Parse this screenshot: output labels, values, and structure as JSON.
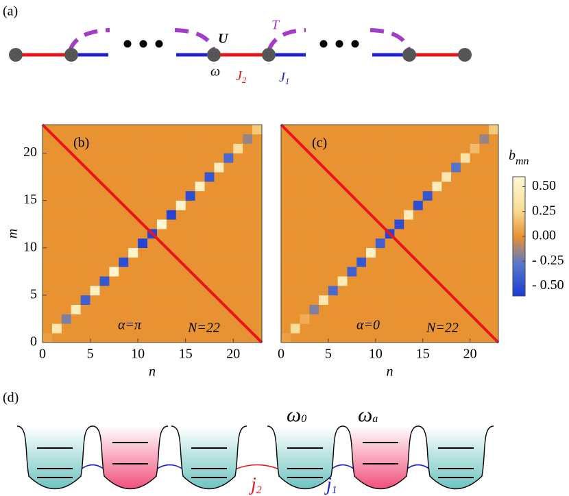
{
  "panel_a": {
    "label": "(a)",
    "U": "U",
    "T": "T",
    "omega": "ω",
    "J2": {
      "base": "J",
      "sub": "2"
    },
    "J1": {
      "base": "J",
      "sub": "1"
    }
  },
  "chart_data": [
    {
      "type": "heatmap",
      "label": "(b)",
      "annotation": "α=π",
      "size_label": "N=22",
      "xlabel": "n",
      "ylabel": "m",
      "xlim": [
        0,
        23
      ],
      "ylim": [
        0,
        23
      ],
      "xticks": [
        0,
        5,
        10,
        15,
        20
      ],
      "yticks": [
        0,
        5,
        10,
        15,
        20
      ],
      "z": [
        [
          0.05,
          0,
          0,
          0,
          0,
          0,
          0,
          0,
          0,
          0,
          0,
          0,
          0,
          0,
          0,
          0,
          0,
          0,
          0,
          0,
          0,
          0,
          0
        ],
        [
          0,
          0.4,
          0,
          0,
          0,
          0,
          0,
          0,
          0,
          0,
          0,
          0,
          0,
          0,
          0,
          0,
          0,
          0,
          0,
          0,
          0,
          0,
          0
        ],
        [
          0,
          0,
          -0.2,
          0,
          0,
          0,
          0,
          0,
          0,
          0,
          0,
          0,
          0,
          0,
          0,
          0,
          0,
          0,
          0,
          0,
          0,
          0,
          0
        ],
        [
          0,
          0,
          0,
          0.45,
          0,
          0,
          0,
          0,
          0,
          0,
          0,
          0,
          0,
          0,
          0,
          0,
          0,
          0,
          0,
          0,
          0,
          0,
          0
        ],
        [
          0,
          0,
          0,
          0,
          -0.4,
          0,
          0,
          0,
          0,
          0,
          0,
          0,
          0,
          0,
          0,
          0,
          0,
          0,
          0,
          0,
          0,
          0,
          0
        ],
        [
          0,
          0,
          0,
          0,
          0,
          0.5,
          0,
          0,
          0,
          0,
          0,
          0,
          0,
          0,
          0,
          0,
          0,
          0,
          0,
          0,
          0,
          0,
          0
        ],
        [
          0,
          0,
          0,
          0,
          0,
          0,
          -0.45,
          0,
          0,
          0,
          0,
          0,
          0,
          0,
          0,
          0,
          0,
          0,
          0,
          0,
          0,
          0,
          0
        ],
        [
          0,
          0,
          0,
          0,
          0,
          0,
          0,
          0.55,
          0,
          0,
          0,
          0,
          0,
          0,
          0,
          0,
          0,
          0,
          0,
          0,
          0,
          0,
          0
        ],
        [
          0,
          0,
          0,
          0,
          0,
          0,
          0,
          0,
          -0.5,
          0,
          0,
          0,
          0,
          0,
          0,
          0,
          0,
          0,
          0,
          0,
          0,
          0,
          0
        ],
        [
          0,
          0,
          0,
          0,
          0,
          0,
          0,
          0,
          0,
          0.55,
          0,
          0,
          0,
          0,
          0,
          0,
          0,
          0,
          0,
          0,
          0,
          0,
          0
        ],
        [
          0,
          0,
          0,
          0,
          0,
          0,
          0,
          0,
          0,
          0,
          -0.55,
          0,
          0,
          0,
          0,
          0,
          0,
          0,
          0,
          0,
          0,
          0,
          0
        ],
        [
          0,
          0,
          0,
          0,
          0,
          0,
          0,
          0,
          0,
          0,
          0,
          -0.55,
          0,
          0,
          0,
          0,
          0,
          0,
          0,
          0,
          0,
          0,
          0
        ],
        [
          0,
          0,
          0,
          0,
          0,
          0,
          0,
          0,
          0,
          0,
          0,
          0,
          0.6,
          0,
          0,
          0,
          0,
          0,
          0,
          0,
          0,
          0,
          0
        ],
        [
          0,
          0,
          0,
          0,
          0,
          0,
          0,
          0,
          0,
          0,
          0,
          0,
          0,
          -0.55,
          0,
          0,
          0,
          0,
          0,
          0,
          0,
          0,
          0
        ],
        [
          0,
          0,
          0,
          0,
          0,
          0,
          0,
          0,
          0,
          0,
          0,
          0,
          0,
          0,
          0.55,
          0,
          0,
          0,
          0,
          0,
          0,
          0,
          0
        ],
        [
          0,
          0,
          0,
          0,
          0,
          0,
          0,
          0,
          0,
          0,
          0,
          0,
          0,
          0,
          0,
          -0.5,
          0,
          0,
          0,
          0,
          0,
          0,
          0
        ],
        [
          0,
          0,
          0,
          0,
          0,
          0,
          0,
          0,
          0,
          0,
          0,
          0,
          0,
          0,
          0,
          0,
          0.5,
          0,
          0,
          0,
          0,
          0,
          0
        ],
        [
          0,
          0,
          0,
          0,
          0,
          0,
          0,
          0,
          0,
          0,
          0,
          0,
          0,
          0,
          0,
          0,
          0,
          -0.45,
          0,
          0,
          0,
          0,
          0
        ],
        [
          0,
          0,
          0,
          0,
          0,
          0,
          0,
          0,
          0,
          0,
          0,
          0,
          0,
          0,
          0,
          0,
          0,
          0,
          0.45,
          0,
          0,
          0,
          0
        ],
        [
          0,
          0,
          0,
          0,
          0,
          0,
          0,
          0,
          0,
          0,
          0,
          0,
          0,
          0,
          0,
          0,
          0,
          0,
          0,
          -0.35,
          0,
          0,
          0
        ],
        [
          0,
          0,
          0,
          0,
          0,
          0,
          0,
          0,
          0,
          0,
          0,
          0,
          0,
          0,
          0,
          0,
          0,
          0,
          0,
          0,
          0.3,
          0,
          0
        ],
        [
          0,
          0,
          0,
          0,
          0,
          0,
          0,
          0,
          0,
          0,
          0,
          0,
          0,
          0,
          0,
          0,
          0,
          0,
          0,
          0,
          0,
          -0.15,
          0
        ],
        [
          0,
          0,
          0,
          0,
          0,
          0,
          0,
          0,
          0,
          0,
          0,
          0,
          0,
          0,
          0,
          0,
          0,
          0,
          0,
          0,
          0,
          0,
          0.2
        ]
      ]
    },
    {
      "type": "heatmap",
      "label": "(c)",
      "annotation": "α=0",
      "size_label": "N=22",
      "xlabel": "n",
      "xlim": [
        0,
        23
      ],
      "ylim": [
        0,
        23
      ],
      "xticks": [
        0,
        5,
        10,
        15,
        20
      ],
      "clim": [
        -0.6,
        0.6
      ],
      "cticks": [
        {
          "value": 0.5,
          "label": "0.50"
        },
        {
          "value": 0.25,
          "label": "0.25"
        },
        {
          "value": 0,
          "label": "0.00"
        },
        {
          "value": -0.25,
          "label": "- 0.25"
        },
        {
          "value": -0.5,
          "label": "- 0.50"
        }
      ],
      "colorbar_label": {
        "base": "b",
        "sub": "mn"
      },
      "z": [
        [
          0.05,
          0,
          0,
          0,
          0,
          0,
          0,
          0,
          0,
          0,
          0,
          0,
          0,
          0,
          0,
          0,
          0,
          0,
          0,
          0,
          0,
          0,
          0
        ],
        [
          0,
          0.3,
          0,
          0,
          0,
          0,
          0,
          0,
          0,
          0,
          0,
          0,
          0,
          0,
          0,
          0,
          0,
          0,
          0,
          0,
          0,
          0,
          0
        ],
        [
          0,
          0,
          0.1,
          0,
          0,
          0,
          0,
          0,
          0,
          0,
          0,
          0,
          0,
          0,
          0,
          0,
          0,
          0,
          0,
          0,
          0,
          0,
          0
        ],
        [
          0,
          0,
          0,
          -0.2,
          0,
          0,
          0,
          0,
          0,
          0,
          0,
          0,
          0,
          0,
          0,
          0,
          0,
          0,
          0,
          0,
          0,
          0,
          0
        ],
        [
          0,
          0,
          0,
          0,
          0.4,
          0,
          0,
          0,
          0,
          0,
          0,
          0,
          0,
          0,
          0,
          0,
          0,
          0,
          0,
          0,
          0,
          0,
          0
        ],
        [
          0,
          0,
          0,
          0,
          0,
          -0.35,
          0,
          0,
          0,
          0,
          0,
          0,
          0,
          0,
          0,
          0,
          0,
          0,
          0,
          0,
          0,
          0,
          0
        ],
        [
          0,
          0,
          0,
          0,
          0,
          0,
          0.45,
          0,
          0,
          0,
          0,
          0,
          0,
          0,
          0,
          0,
          0,
          0,
          0,
          0,
          0,
          0,
          0
        ],
        [
          0,
          0,
          0,
          0,
          0,
          0,
          0,
          -0.4,
          0,
          0,
          0,
          0,
          0,
          0,
          0,
          0,
          0,
          0,
          0,
          0,
          0,
          0,
          0
        ],
        [
          0,
          0,
          0,
          0,
          0,
          0,
          0,
          0,
          -0.45,
          0,
          0,
          0,
          0,
          0,
          0,
          0,
          0,
          0,
          0,
          0,
          0,
          0,
          0
        ],
        [
          0,
          0,
          0,
          0,
          0,
          0,
          0,
          0,
          0,
          0.5,
          0,
          0,
          0,
          0,
          0,
          0,
          0,
          0,
          0,
          0,
          0,
          0,
          0
        ],
        [
          0,
          0,
          0,
          0,
          0,
          0,
          0,
          0,
          0,
          0,
          -0.4,
          0,
          0,
          0,
          0,
          0,
          0,
          0,
          0,
          0,
          0,
          0,
          0
        ],
        [
          0,
          0,
          0,
          0,
          0,
          0,
          0,
          0,
          0,
          0,
          0,
          -0.55,
          0,
          0,
          0,
          0,
          0,
          0,
          0,
          0,
          0,
          0,
          0
        ],
        [
          0,
          0,
          0,
          0,
          0,
          0,
          0,
          0,
          0,
          0,
          0,
          0,
          -0.5,
          0,
          0,
          0,
          0,
          0,
          0,
          0,
          0,
          0,
          0
        ],
        [
          0,
          0,
          0,
          0,
          0,
          0,
          0,
          0,
          0,
          0,
          0,
          0,
          0,
          0.45,
          0,
          0,
          0,
          0,
          0,
          0,
          0,
          0,
          0
        ],
        [
          0,
          0,
          0,
          0,
          0,
          0,
          0,
          0,
          0,
          0,
          0,
          0,
          0,
          0,
          -0.5,
          0,
          0,
          0,
          0,
          0,
          0,
          0,
          0
        ],
        [
          0,
          0,
          0,
          0,
          0,
          0,
          0,
          0,
          0,
          0,
          0,
          0,
          0,
          0,
          0,
          -0.45,
          0,
          0,
          0,
          0,
          0,
          0,
          0
        ],
        [
          0,
          0,
          0,
          0,
          0,
          0,
          0,
          0,
          0,
          0,
          0,
          0,
          0,
          0,
          0,
          0,
          0.45,
          0,
          0,
          0,
          0,
          0,
          0
        ],
        [
          0,
          0,
          0,
          0,
          0,
          0,
          0,
          0,
          0,
          0,
          0,
          0,
          0,
          0,
          0,
          0,
          0,
          0.4,
          0,
          0,
          0,
          0,
          0
        ],
        [
          0,
          0,
          0,
          0,
          0,
          0,
          0,
          0,
          0,
          0,
          0,
          0,
          0,
          0,
          0,
          0,
          0,
          0,
          -0.3,
          0,
          0,
          0,
          0
        ],
        [
          0,
          0,
          0,
          0,
          0,
          0,
          0,
          0,
          0,
          0,
          0,
          0,
          0,
          0,
          0,
          0,
          0,
          0,
          0,
          0.35,
          0,
          0,
          0
        ],
        [
          0,
          0,
          0,
          0,
          0,
          0,
          0,
          0,
          0,
          0,
          0,
          0,
          0,
          0,
          0,
          0,
          0,
          0,
          0,
          0,
          0.15,
          0,
          0
        ],
        [
          0,
          0,
          0,
          0,
          0,
          0,
          0,
          0,
          0,
          0,
          0,
          0,
          0,
          0,
          0,
          0,
          0,
          0,
          0,
          0,
          0,
          -0.15,
          0
        ],
        [
          0,
          0,
          0,
          0,
          0,
          0,
          0,
          0,
          0,
          0,
          0,
          0,
          0,
          0,
          0,
          0,
          0,
          0,
          0,
          0,
          0,
          0,
          0.2
        ]
      ]
    }
  ],
  "panel_d": {
    "label": "(d)",
    "omega0": {
      "base": "ω",
      "sub": "0"
    },
    "omegaa": {
      "base": "ω",
      "sub": "a"
    },
    "j2": {
      "base": "j",
      "sub": "2"
    },
    "j1": {
      "base": "j",
      "sub": "1"
    }
  }
}
